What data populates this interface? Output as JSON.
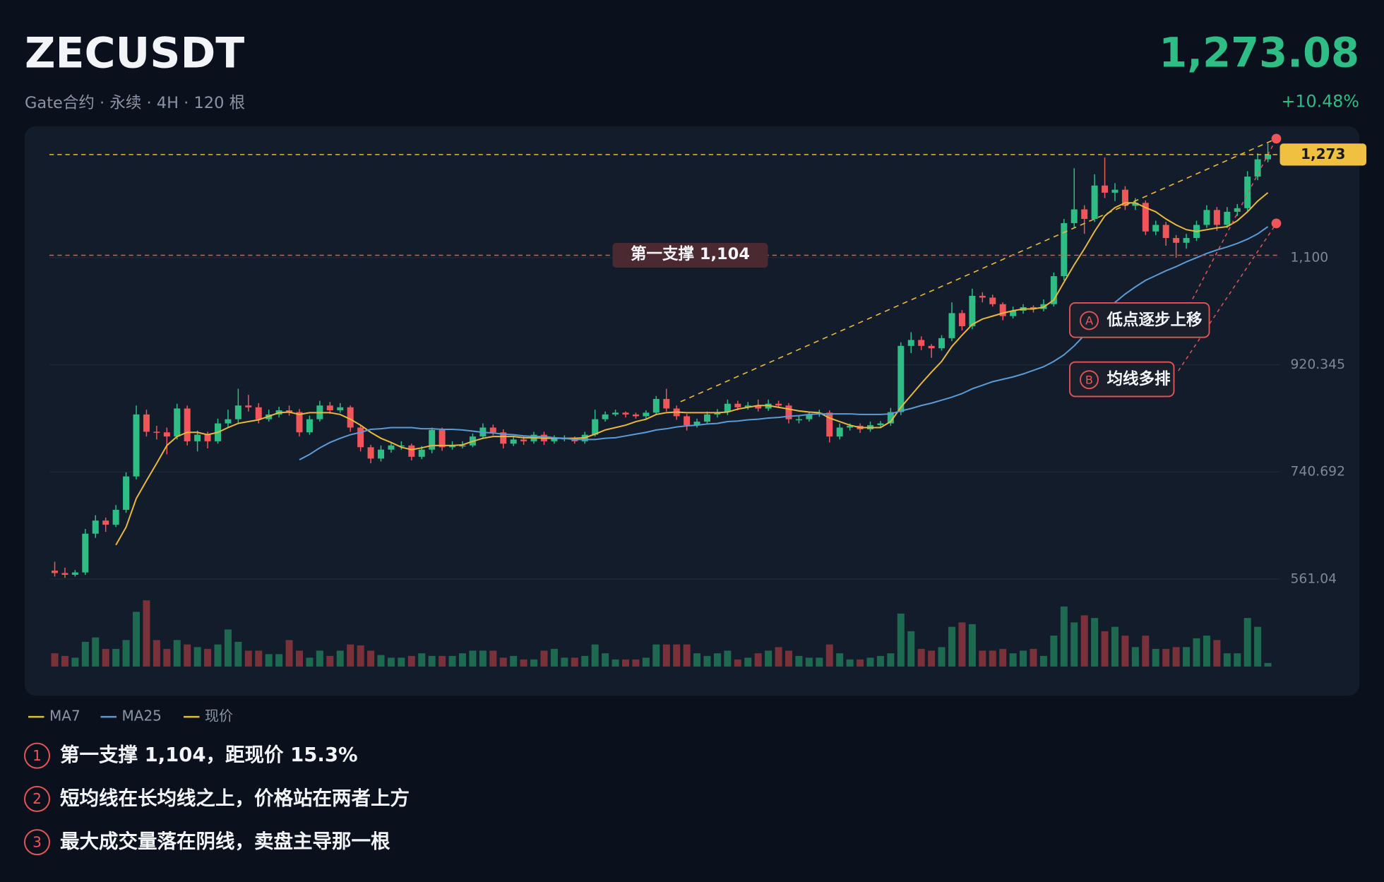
{
  "chart_data": {
    "type": "candlestick",
    "title": "ZECUSDT",
    "subtitle": "Gate合约 · 永续 · 4H · 120 根",
    "price": "1,273.08",
    "change": "+10.48%",
    "up_color": "#2ebd85",
    "down_color": "#f0555a",
    "volume_up_color": "#1d6a50",
    "volume_down_color": "#7a3139",
    "ylim": [
      540,
      1310
    ],
    "yticks": [
      561.04,
      740.692,
      920.345,
      {
        "value": 1100,
        "label": "1,100"
      }
    ],
    "grid": true,
    "candles": [
      [
        575,
        590,
        565,
        571
      ],
      [
        571,
        580,
        563,
        568
      ],
      [
        568,
        576,
        565,
        572
      ],
      [
        572,
        645,
        568,
        637
      ],
      [
        637,
        668,
        630,
        659
      ],
      [
        659,
        664,
        640,
        652
      ],
      [
        652,
        685,
        648,
        677
      ],
      [
        677,
        740,
        672,
        733
      ],
      [
        733,
        852,
        728,
        837
      ],
      [
        837,
        845,
        800,
        808
      ],
      [
        808,
        818,
        795,
        807
      ],
      [
        807,
        815,
        770,
        800
      ],
      [
        800,
        855,
        795,
        847
      ],
      [
        847,
        852,
        785,
        792
      ],
      [
        792,
        810,
        775,
        803
      ],
      [
        803,
        808,
        780,
        792
      ],
      [
        792,
        830,
        788,
        822
      ],
      [
        822,
        845,
        815,
        829
      ],
      [
        829,
        880,
        822,
        852
      ],
      [
        852,
        870,
        842,
        849
      ],
      [
        849,
        856,
        822,
        829
      ],
      [
        829,
        845,
        825,
        837
      ],
      [
        837,
        850,
        832,
        844
      ],
      [
        844,
        852,
        835,
        841
      ],
      [
        841,
        846,
        800,
        807
      ],
      [
        807,
        835,
        803,
        829
      ],
      [
        829,
        860,
        825,
        852
      ],
      [
        852,
        858,
        838,
        844
      ],
      [
        844,
        856,
        840,
        849
      ],
      [
        849,
        852,
        808,
        815
      ],
      [
        815,
        818,
        775,
        782
      ],
      [
        782,
        786,
        755,
        763
      ],
      [
        763,
        785,
        758,
        778
      ],
      [
        778,
        790,
        773,
        785
      ],
      [
        785,
        792,
        778,
        785
      ],
      [
        785,
        788,
        760,
        766
      ],
      [
        766,
        784,
        762,
        778
      ],
      [
        778,
        815,
        772,
        811
      ],
      [
        811,
        815,
        776,
        782
      ],
      [
        782,
        792,
        778,
        785
      ],
      [
        785,
        792,
        780,
        785
      ],
      [
        785,
        805,
        782,
        800
      ],
      [
        800,
        822,
        796,
        815
      ],
      [
        815,
        820,
        802,
        807
      ],
      [
        807,
        812,
        780,
        788
      ],
      [
        788,
        800,
        784,
        795
      ],
      [
        795,
        800,
        786,
        792
      ],
      [
        792,
        808,
        788,
        803
      ],
      [
        803,
        808,
        786,
        792
      ],
      [
        792,
        802,
        788,
        797
      ],
      [
        797,
        802,
        792,
        797
      ],
      [
        797,
        800,
        788,
        792
      ],
      [
        792,
        808,
        788,
        803
      ],
      [
        803,
        845,
        800,
        829
      ],
      [
        829,
        842,
        825,
        837
      ],
      [
        837,
        845,
        834,
        840
      ],
      [
        840,
        842,
        832,
        837
      ],
      [
        837,
        840,
        830,
        834
      ],
      [
        834,
        844,
        830,
        840
      ],
      [
        840,
        868,
        836,
        863
      ],
      [
        863,
        880,
        842,
        847
      ],
      [
        847,
        852,
        828,
        834
      ],
      [
        834,
        838,
        810,
        819
      ],
      [
        819,
        830,
        815,
        825
      ],
      [
        825,
        842,
        820,
        837
      ],
      [
        837,
        846,
        832,
        841
      ],
      [
        841,
        862,
        836,
        855
      ],
      [
        855,
        860,
        844,
        849
      ],
      [
        849,
        858,
        845,
        852
      ],
      [
        852,
        862,
        842,
        847
      ],
      [
        847,
        862,
        843,
        855
      ],
      [
        855,
        860,
        848,
        852
      ],
      [
        852,
        856,
        822,
        829
      ],
      [
        829,
        835,
        822,
        829
      ],
      [
        829,
        842,
        825,
        837
      ],
      [
        837,
        845,
        833,
        840
      ],
      [
        840,
        844,
        790,
        800
      ],
      [
        800,
        822,
        795,
        815
      ],
      [
        815,
        822,
        810,
        818
      ],
      [
        818,
        822,
        806,
        812
      ],
      [
        812,
        825,
        808,
        819
      ],
      [
        819,
        826,
        815,
        822
      ],
      [
        822,
        848,
        818,
        841
      ],
      [
        841,
        958,
        836,
        952
      ],
      [
        952,
        975,
        940,
        962
      ],
      [
        962,
        968,
        945,
        952
      ],
      [
        952,
        955,
        932,
        948
      ],
      [
        948,
        970,
        944,
        965
      ],
      [
        965,
        1025,
        960,
        1007
      ],
      [
        1007,
        1012,
        978,
        985
      ],
      [
        985,
        1048,
        980,
        1036
      ],
      [
        1036,
        1042,
        1025,
        1033
      ],
      [
        1033,
        1038,
        1018,
        1022
      ],
      [
        1022,
        1025,
        995,
        1002
      ],
      [
        1002,
        1018,
        998,
        1011
      ],
      [
        1011,
        1022,
        1006,
        1017
      ],
      [
        1017,
        1020,
        1008,
        1014
      ],
      [
        1014,
        1030,
        1010,
        1022
      ],
      [
        1022,
        1075,
        1018,
        1069
      ],
      [
        1069,
        1165,
        1062,
        1158
      ],
      [
        1158,
        1250,
        1150,
        1181
      ],
      [
        1181,
        1188,
        1140,
        1165
      ],
      [
        1165,
        1240,
        1160,
        1221
      ],
      [
        1221,
        1268,
        1200,
        1209
      ],
      [
        1209,
        1225,
        1195,
        1214
      ],
      [
        1214,
        1220,
        1180,
        1187
      ],
      [
        1187,
        1200,
        1180,
        1192
      ],
      [
        1192,
        1196,
        1138,
        1144
      ],
      [
        1144,
        1162,
        1138,
        1155
      ],
      [
        1155,
        1160,
        1120,
        1133
      ],
      [
        1133,
        1138,
        1100,
        1125
      ],
      [
        1125,
        1140,
        1115,
        1133
      ],
      [
        1133,
        1162,
        1128,
        1155
      ],
      [
        1155,
        1188,
        1150,
        1180
      ],
      [
        1180,
        1185,
        1145,
        1155
      ],
      [
        1155,
        1185,
        1150,
        1177
      ],
      [
        1177,
        1190,
        1170,
        1183
      ],
      [
        1183,
        1245,
        1178,
        1236
      ],
      [
        1236,
        1275,
        1230,
        1265
      ],
      [
        1265,
        1292,
        1260,
        1273.08
      ]
    ],
    "volume": [
      15,
      12,
      10,
      28,
      33,
      20,
      20,
      30,
      62,
      75,
      30,
      20,
      30,
      25,
      22,
      20,
      25,
      42,
      28,
      18,
      18,
      14,
      14,
      30,
      18,
      10,
      18,
      12,
      18,
      25,
      24,
      18,
      13,
      10,
      10,
      12,
      15,
      12,
      12,
      12,
      15,
      18,
      18,
      18,
      10,
      12,
      8,
      8,
      18,
      20,
      10,
      10,
      12,
      25,
      15,
      8,
      8,
      8,
      10,
      25,
      25,
      25,
      25,
      15,
      12,
      15,
      18,
      8,
      10,
      15,
      18,
      22,
      18,
      12,
      10,
      10,
      25,
      15,
      8,
      8,
      10,
      12,
      15,
      60,
      40,
      20,
      18,
      22,
      45,
      50,
      48,
      18,
      18,
      20,
      15,
      18,
      20,
      12,
      35,
      68,
      50,
      58,
      55,
      40,
      45,
      35,
      22,
      35,
      20,
      20,
      22,
      22,
      32,
      35,
      30,
      15,
      15,
      55,
      45,
      4
    ],
    "series": [
      {
        "name": "MA7",
        "color": "#e8b83a",
        "values": [
          null,
          null,
          null,
          null,
          null,
          null,
          618,
          648,
          696,
          726,
          755,
          785,
          800,
          807,
          807,
          803,
          807,
          815,
          822,
          825,
          828,
          834,
          840,
          841,
          837,
          840,
          840,
          840,
          837,
          829,
          819,
          807,
          797,
          790,
          782,
          778,
          781,
          785,
          785,
          785,
          786,
          792,
          797,
          800,
          800,
          800,
          798,
          798,
          797,
          797,
          797,
          797,
          798,
          804,
          811,
          815,
          819,
          825,
          829,
          837,
          840,
          841,
          840,
          840,
          840,
          840,
          841,
          846,
          849,
          852,
          852,
          849,
          846,
          843,
          841,
          840,
          831,
          825,
          819,
          815,
          815,
          815,
          825,
          849,
          869,
          889,
          908,
          926,
          951,
          970,
          988,
          997,
          1002,
          1007,
          1011,
          1014,
          1014,
          1017,
          1029,
          1059,
          1088,
          1115,
          1144,
          1170,
          1184,
          1192,
          1192,
          1184,
          1177,
          1165,
          1155,
          1147,
          1144,
          1147,
          1150,
          1152,
          1162,
          1177,
          1195,
          1209
        ]
      },
      {
        "name": "MA25",
        "color": "#5b9bd5",
        "values": [
          null,
          null,
          null,
          null,
          null,
          null,
          null,
          null,
          null,
          null,
          null,
          null,
          null,
          null,
          null,
          null,
          null,
          null,
          null,
          null,
          null,
          null,
          null,
          null,
          761,
          770,
          781,
          790,
          797,
          803,
          807,
          812,
          813,
          815,
          815,
          815,
          813,
          813,
          812,
          812,
          811,
          809,
          807,
          806,
          804,
          803,
          801,
          800,
          800,
          798,
          797,
          795,
          795,
          795,
          797,
          798,
          801,
          804,
          807,
          811,
          813,
          816,
          818,
          819,
          821,
          822,
          825,
          826,
          828,
          829,
          831,
          832,
          834,
          835,
          837,
          838,
          838,
          838,
          838,
          837,
          837,
          837,
          838,
          843,
          847,
          852,
          856,
          861,
          866,
          872,
          880,
          886,
          892,
          896,
          900,
          905,
          911,
          917,
          926,
          937,
          952,
          970,
          989,
          1007,
          1025,
          1039,
          1051,
          1062,
          1070,
          1078,
          1085,
          1093,
          1100,
          1107,
          1113,
          1118,
          1124,
          1131,
          1140,
          1152
        ]
      }
    ],
    "last_price": {
      "name": "现价",
      "value": 1273,
      "label": "1,273",
      "color": "#e8b83a"
    },
    "support": {
      "value": 1104,
      "label": "第一支撑 1,104",
      "color": "#e05555"
    },
    "annotations": [
      {
        "marker": "A",
        "text": "低点逐步上移"
      },
      {
        "marker": "B",
        "text": "均线多排"
      }
    ],
    "notes": [
      {
        "marker": "1",
        "text": "第一支撑 1,104，距现价 15.3%"
      },
      {
        "marker": "2",
        "text": "短均线在长均线之上，价格站在两者上方"
      },
      {
        "marker": "3",
        "text": "最大成交量落在阴线，卖盘主导那一根"
      }
    ]
  }
}
